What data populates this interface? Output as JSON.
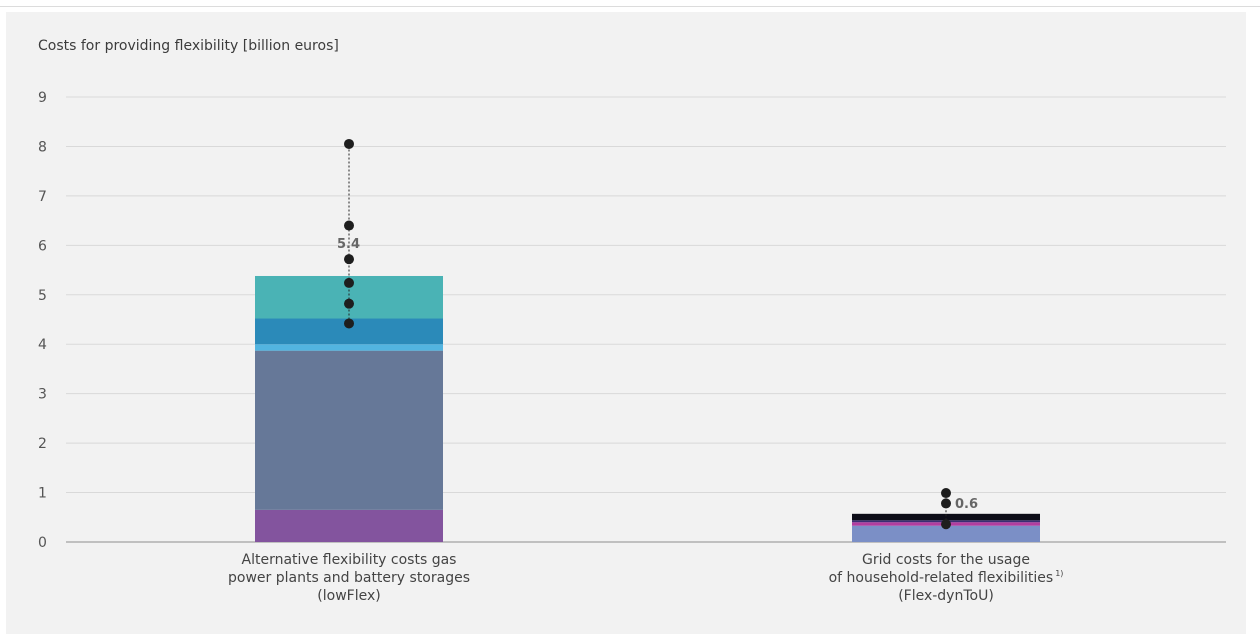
{
  "chart_data": {
    "type": "bar",
    "title": "Costs for providing flexibility [billion euros]",
    "ylim": [
      0,
      9
    ],
    "yticks": [
      0,
      1,
      2,
      3,
      4,
      5,
      6,
      7,
      8,
      9
    ],
    "grid": true,
    "categories": [
      {
        "lines": [
          "Alternative flexibility costs gas",
          "power plants and battery storages",
          "(lowFlex)"
        ],
        "total_label": "5.4",
        "stack": [
          {
            "value": 0.65,
            "color": "#83549e"
          },
          {
            "value": 3.22,
            "color": "#667898"
          },
          {
            "value": 0.13,
            "color": "#52b4e0"
          },
          {
            "value": 0.52,
            "color": "#2b8ab9"
          },
          {
            "value": 0.86,
            "color": "#4ab3b5"
          }
        ],
        "points": [
          4.42,
          4.82,
          5.24,
          5.72,
          6.4,
          8.05
        ]
      },
      {
        "lines": [
          "Grid costs for the usage",
          "of household-related flexibilities",
          "(Flex-dynToU)"
        ],
        "superscript": "1)",
        "total_label": "0.6",
        "stack": [
          {
            "value": 0.33,
            "color": "#7b8fc6"
          },
          {
            "value": 0.07,
            "color": "#b23d9f"
          },
          {
            "value": 0.04,
            "color": "#3a2d73"
          },
          {
            "value": 0.13,
            "color": "#0d0d18"
          }
        ],
        "points": [
          0.36,
          0.78,
          0.99
        ]
      }
    ]
  }
}
